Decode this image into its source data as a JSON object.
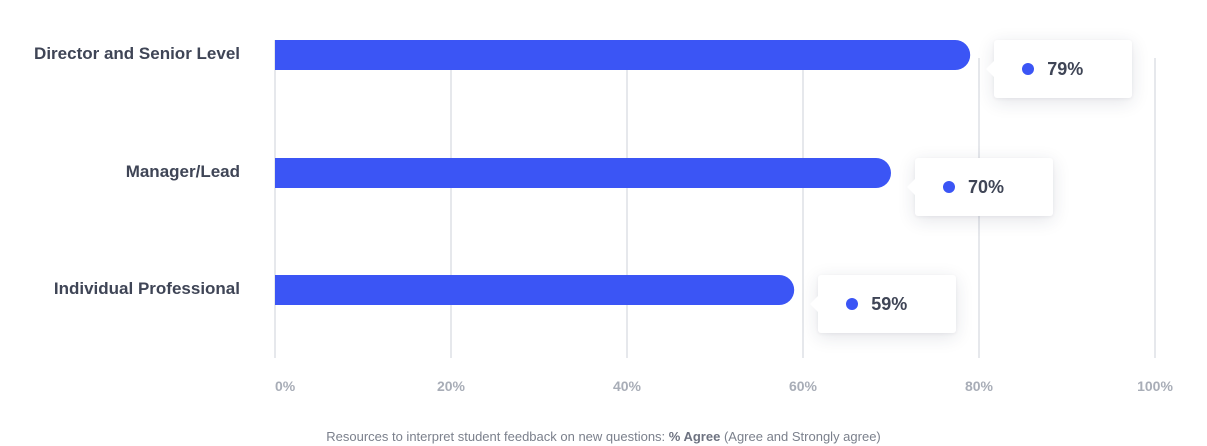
{
  "chart_data": {
    "type": "bar",
    "orientation": "horizontal",
    "categories": [
      "Director and Senior Level",
      "Manager/Lead",
      "Individual Professional"
    ],
    "series": [
      {
        "values": [
          79,
          70,
          59
        ]
      }
    ],
    "value_labels": [
      "79%",
      "70%",
      "59%"
    ],
    "x_ticks": [
      "0%",
      "20%",
      "40%",
      "60%",
      "80%",
      "100%"
    ],
    "xlim": [
      0,
      100
    ],
    "grid": true,
    "caption": {
      "prefix": "Resources to interpret student feedback on new questions: ",
      "emphasis": "% Agree",
      "suffix": " (Agree and Strongly agree)"
    },
    "colors": {
      "bar": "#3b55f5",
      "grid": "#e6e8ec"
    }
  }
}
